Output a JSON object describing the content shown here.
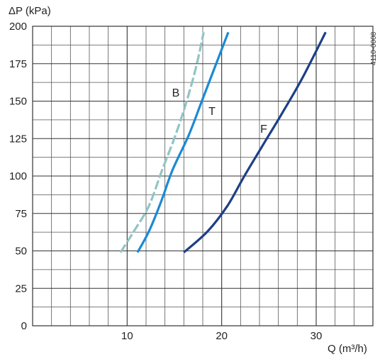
{
  "chart_data": {
    "type": "line",
    "ylabel": "ΔP (kPa)",
    "xlabel": "Q (m³/h)",
    "code": "4110-0008",
    "xlim": [
      0,
      36
    ],
    "ylim": [
      0,
      200
    ],
    "x_ticks": [
      10,
      20,
      30
    ],
    "y_ticks": [
      0,
      25,
      50,
      75,
      100,
      125,
      150,
      175,
      200
    ],
    "x_minor_step": 2,
    "y_minor_step": 12.5,
    "grid": true,
    "series": [
      {
        "name": "B",
        "color": "#8fc5c3",
        "dashed": true,
        "points": [
          [
            9.3,
            49
          ],
          [
            10.7,
            63
          ],
          [
            12.3,
            80
          ],
          [
            13.7,
            104
          ],
          [
            15.1,
            127
          ],
          [
            16.3,
            150
          ],
          [
            17.3,
            173
          ],
          [
            18.1,
            196
          ]
        ]
      },
      {
        "name": "T",
        "color": "#1a8ad4",
        "dashed": false,
        "points": [
          [
            11.1,
            49
          ],
          [
            12.3,
            63
          ],
          [
            13.6,
            83
          ],
          [
            14.8,
            104
          ],
          [
            16.5,
            127
          ],
          [
            17.9,
            150
          ],
          [
            19.3,
            173
          ],
          [
            20.7,
            196
          ]
        ]
      },
      {
        "name": "F",
        "color": "#1d3f86",
        "dashed": false,
        "points": [
          [
            16.0,
            49
          ],
          [
            18.5,
            63
          ],
          [
            20.6,
            80
          ],
          [
            22.4,
            100
          ],
          [
            24.3,
            120
          ],
          [
            26.4,
            142
          ],
          [
            28.5,
            165
          ],
          [
            31.0,
            196
          ]
        ]
      }
    ]
  }
}
